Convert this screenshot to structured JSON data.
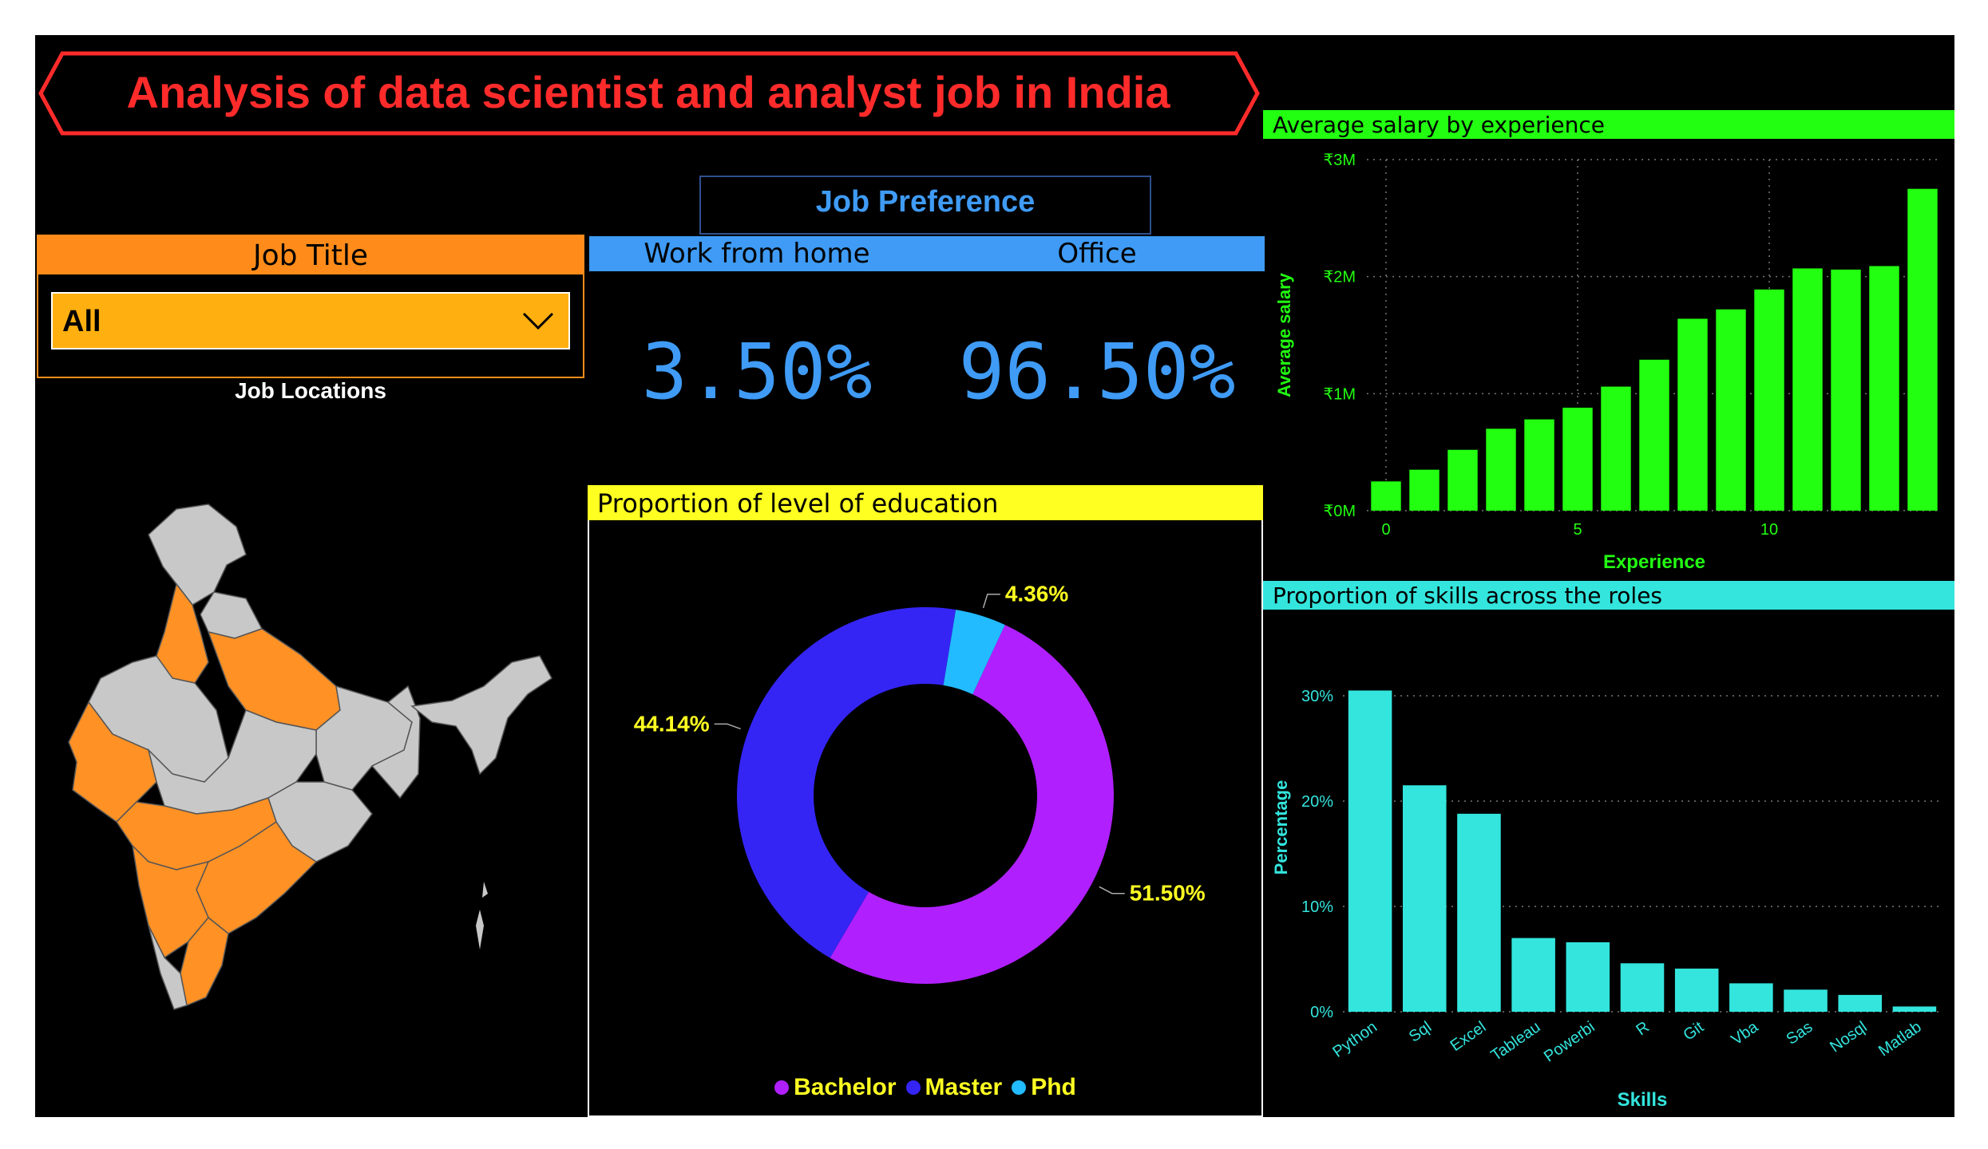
{
  "title": "Analysis of data scientist and analyst job in India",
  "colors": {
    "title_red": "#ff2b2b",
    "job_title_header": "#ff8c1a",
    "slicer_fill": "#ffb010",
    "job_pref_blue": "#3f9bf5",
    "education_header": "#ffff22",
    "salary_green": "#22ff11",
    "skills_cyan": "#33e5dd",
    "map_gray": "#c8c8c8",
    "map_orange": "#ff9125"
  },
  "job_title_slicer": {
    "header": "Job Title",
    "selected": "All",
    "chevron_icon": "chevron-down-icon"
  },
  "job_locations": {
    "label": "Job Locations"
  },
  "job_preference": {
    "header": "Job Preference",
    "wfh_label": "Work from home",
    "office_label": "Office",
    "wfh_value": "3.50%",
    "office_value": "96.50%"
  },
  "chart_data": [
    {
      "type": "pie",
      "title": "Proportion of level of education",
      "donut": true,
      "labels": [
        "Bachelor",
        "Master",
        "Phd"
      ],
      "values": [
        51.5,
        44.14,
        4.36
      ],
      "data_labels": [
        "51.50%",
        "44.14%",
        "4.36%"
      ],
      "colors": [
        "#b020ff",
        "#3525f5",
        "#22bbff"
      ],
      "legend": "bottom-center"
    },
    {
      "type": "bar",
      "title": "Average salary by experience",
      "xlabel": "Experience",
      "ylabel": "Average salary",
      "x": [
        0,
        1,
        2,
        3,
        4,
        5,
        6,
        7,
        8,
        9,
        10,
        11,
        12,
        13,
        14
      ],
      "values": [
        250000,
        350000,
        520000,
        700000,
        780000,
        880000,
        1060000,
        1290000,
        1640000,
        1720000,
        1890000,
        2070000,
        2060000,
        2090000,
        2750000
      ],
      "xticks": [
        "0",
        "5",
        "10"
      ],
      "xtick_values": [
        0,
        5,
        10
      ],
      "yticks": [
        "₹0M",
        "₹1M",
        "₹2M",
        "₹3M"
      ],
      "ylim": [
        0,
        3000000
      ],
      "grid": true,
      "color": "#22ff11"
    },
    {
      "type": "bar",
      "title": "Proportion of skills across the roles",
      "xlabel": "Skills",
      "ylabel": "Percentage",
      "categories": [
        "Python",
        "Sql",
        "Excel",
        "Tableau",
        "Powerbi",
        "R",
        "Git",
        "Vba",
        "Sas",
        "Nosql",
        "Matlab"
      ],
      "values": [
        30.5,
        21.5,
        18.8,
        7.0,
        6.6,
        4.6,
        4.1,
        2.7,
        2.1,
        1.6,
        0.5
      ],
      "yticks": [
        "0%",
        "10%",
        "20%",
        "30%"
      ],
      "ylim": [
        0,
        35
      ],
      "grid": true,
      "color": "#33e5dd"
    }
  ]
}
